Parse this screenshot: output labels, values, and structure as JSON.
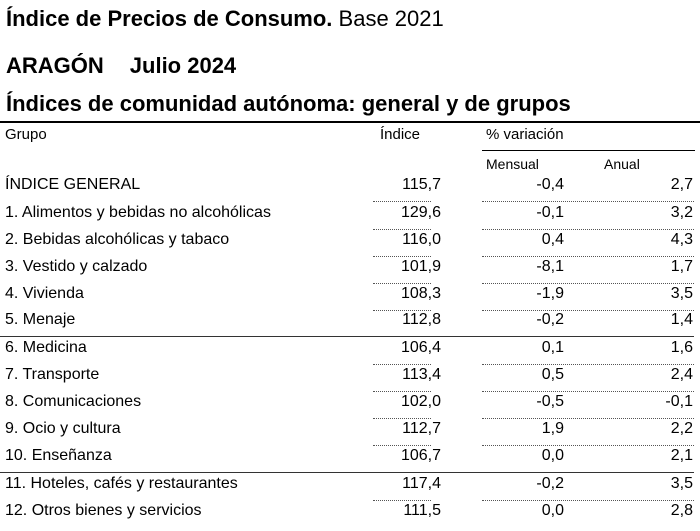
{
  "header": {
    "title_bold": "Índice de Precios de Consumo.",
    "title_rest": "Base 2021",
    "region": "ARAGÓN",
    "period": "Julio 2024",
    "subtitle": "Índices de comunidad autónoma: general y de grupos"
  },
  "table": {
    "columns": {
      "grupo": "Grupo",
      "indice": "Índice",
      "variacion": "% variación",
      "mensual": "Mensual",
      "anual": "Anual"
    },
    "rows": [
      {
        "label": "ÍNDICE GENERAL",
        "indice": "115,7",
        "mensual": "-0,4",
        "anual": "2,7"
      },
      {
        "label": "1. Alimentos y bebidas no alcohólicas",
        "indice": "129,6",
        "mensual": "-0,1",
        "anual": "3,2"
      },
      {
        "label": "2. Bebidas alcohólicas y tabaco",
        "indice": "116,0",
        "mensual": "0,4",
        "anual": "4,3"
      },
      {
        "label": "3. Vestido y calzado",
        "indice": "101,9",
        "mensual": "-8,1",
        "anual": "1,7"
      },
      {
        "label": "4. Vivienda",
        "indice": "108,3",
        "mensual": "-1,9",
        "anual": "3,5"
      },
      {
        "label": "5. Menaje",
        "indice": "112,8",
        "mensual": "-0,2",
        "anual": "1,4"
      },
      {
        "label": "6. Medicina",
        "indice": "106,4",
        "mensual": "0,1",
        "anual": "1,6"
      },
      {
        "label": "7. Transporte",
        "indice": "113,4",
        "mensual": "0,5",
        "anual": "2,4"
      },
      {
        "label": "8. Comunicaciones",
        "indice": "102,0",
        "mensual": "-0,5",
        "anual": "-0,1"
      },
      {
        "label": "9. Ocio y cultura",
        "indice": "112,7",
        "mensual": "1,9",
        "anual": "2,2"
      },
      {
        "label": "10. Enseñanza",
        "indice": "106,7",
        "mensual": "0,0",
        "anual": "2,1"
      },
      {
        "label": "11. Hoteles, cafés y restaurantes",
        "indice": "117,4",
        "mensual": "-0,2",
        "anual": "3,5"
      },
      {
        "label": "12. Otros bienes y servicios",
        "indice": "111,5",
        "mensual": "0,0",
        "anual": "2,8"
      }
    ]
  }
}
